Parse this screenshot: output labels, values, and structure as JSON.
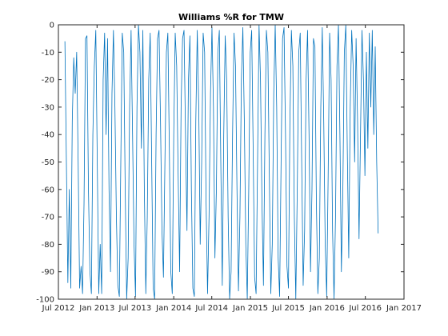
{
  "chart_data": {
    "type": "line",
    "title": "Williams %R for TMW",
    "xlabel": "",
    "ylabel": "",
    "xlim": [
      "2012-07-01",
      "2017-01-01"
    ],
    "ylim": [
      -100,
      0
    ],
    "x_ticks": [
      "2012-07-01",
      "2013-01-01",
      "2013-07-01",
      "2014-01-01",
      "2014-07-01",
      "2015-01-01",
      "2015-07-01",
      "2016-01-01",
      "2016-07-01",
      "2017-01-01"
    ],
    "x_tick_labels": [
      "Jul 2012",
      "Jan 2013",
      "Jul 2013",
      "Jan 2014",
      "Jul 2014",
      "Jan 2015",
      "Jul 2015",
      "Jan 2016",
      "Jul 2016",
      "Jan 2017"
    ],
    "y_ticks": [
      0,
      -10,
      -20,
      -30,
      -40,
      -50,
      -60,
      -70,
      -80,
      -90,
      -100
    ],
    "y_tick_labels": [
      "0",
      "-10",
      "-20",
      "-30",
      "-40",
      "-50",
      "-60",
      "-70",
      "-80",
      "-90",
      "-100"
    ],
    "grid": false,
    "series": [
      {
        "color": "#0072BD",
        "points": [
          [
            "2012-08-01",
            -6
          ],
          [
            "2012-08-08",
            -50
          ],
          [
            "2012-08-15",
            -94
          ],
          [
            "2012-08-22",
            -60
          ],
          [
            "2012-08-29",
            -96
          ],
          [
            "2012-09-05",
            -35
          ],
          [
            "2012-09-12",
            -12
          ],
          [
            "2012-09-19",
            -25
          ],
          [
            "2012-09-26",
            -10
          ],
          [
            "2012-10-03",
            -50
          ],
          [
            "2012-10-10",
            -96
          ],
          [
            "2012-10-17",
            -88
          ],
          [
            "2012-10-24",
            -98
          ],
          [
            "2012-10-31",
            -65
          ],
          [
            "2012-11-07",
            -5
          ],
          [
            "2012-11-14",
            -4
          ],
          [
            "2012-11-21",
            -60
          ],
          [
            "2012-11-28",
            -90
          ],
          [
            "2012-12-05",
            -98
          ],
          [
            "2012-12-12",
            -40
          ],
          [
            "2012-12-19",
            -15
          ],
          [
            "2012-12-26",
            -2
          ],
          [
            "2013-01-02",
            -50
          ],
          [
            "2013-01-09",
            -98
          ],
          [
            "2013-01-16",
            -80
          ],
          [
            "2013-01-23",
            -98
          ],
          [
            "2013-01-30",
            -20
          ],
          [
            "2013-02-06",
            -3
          ],
          [
            "2013-02-13",
            -40
          ],
          [
            "2013-02-20",
            -5
          ],
          [
            "2013-02-27",
            -60
          ],
          [
            "2013-03-06",
            -90
          ],
          [
            "2013-03-13",
            -25
          ],
          [
            "2013-03-20",
            -2
          ],
          [
            "2013-03-27",
            -30
          ],
          [
            "2013-04-03",
            -70
          ],
          [
            "2013-04-10",
            -95
          ],
          [
            "2013-04-17",
            -99
          ],
          [
            "2013-04-24",
            -50
          ],
          [
            "2013-05-01",
            -3
          ],
          [
            "2013-05-08",
            -10
          ],
          [
            "2013-05-15",
            -60
          ],
          [
            "2013-05-22",
            -100
          ],
          [
            "2013-05-29",
            -85
          ],
          [
            "2013-06-05",
            -30
          ],
          [
            "2013-06-12",
            -2
          ],
          [
            "2013-06-19",
            -40
          ],
          [
            "2013-06-26",
            -80
          ],
          [
            "2013-07-03",
            -99
          ],
          [
            "2013-07-10",
            -30
          ],
          [
            "2013-07-17",
            0
          ],
          [
            "2013-07-24",
            -10
          ],
          [
            "2013-07-31",
            -45
          ],
          [
            "2013-08-07",
            -2
          ],
          [
            "2013-08-14",
            -60
          ],
          [
            "2013-08-21",
            -98
          ],
          [
            "2013-08-28",
            -70
          ],
          [
            "2013-09-04",
            -20
          ],
          [
            "2013-09-11",
            -3
          ],
          [
            "2013-09-18",
            -50
          ],
          [
            "2013-09-25",
            -96
          ],
          [
            "2013-10-02",
            -100
          ],
          [
            "2013-10-09",
            -40
          ],
          [
            "2013-10-16",
            -5
          ],
          [
            "2013-10-23",
            -2
          ],
          [
            "2013-10-30",
            -35
          ],
          [
            "2013-11-06",
            -75
          ],
          [
            "2013-11-13",
            -92
          ],
          [
            "2013-11-20",
            -50
          ],
          [
            "2013-11-27",
            -10
          ],
          [
            "2013-12-04",
            -3
          ],
          [
            "2013-12-11",
            -45
          ],
          [
            "2013-12-18",
            -90
          ],
          [
            "2013-12-25",
            -98
          ],
          [
            "2014-01-01",
            -40
          ],
          [
            "2014-01-08",
            -3
          ],
          [
            "2014-01-15",
            -15
          ],
          [
            "2014-01-22",
            -55
          ],
          [
            "2014-01-29",
            -90
          ],
          [
            "2014-02-05",
            -30
          ],
          [
            "2014-02-12",
            -5
          ],
          [
            "2014-02-19",
            -2
          ],
          [
            "2014-02-26",
            -40
          ],
          [
            "2014-03-05",
            -75
          ],
          [
            "2014-03-12",
            -20
          ],
          [
            "2014-03-19",
            -4
          ],
          [
            "2014-03-26",
            -60
          ],
          [
            "2014-04-02",
            -96
          ],
          [
            "2014-04-09",
            -99
          ],
          [
            "2014-04-16",
            -35
          ],
          [
            "2014-04-23",
            -2
          ],
          [
            "2014-04-30",
            -30
          ],
          [
            "2014-05-07",
            -80
          ],
          [
            "2014-05-14",
            -50
          ],
          [
            "2014-05-21",
            -3
          ],
          [
            "2014-05-28",
            -10
          ],
          [
            "2014-06-04",
            -65
          ],
          [
            "2014-06-11",
            -98
          ],
          [
            "2014-06-18",
            -70
          ],
          [
            "2014-06-25",
            -25
          ],
          [
            "2014-07-02",
            -1
          ],
          [
            "2014-07-09",
            -30
          ],
          [
            "2014-07-16",
            -85
          ],
          [
            "2014-07-23",
            -60
          ],
          [
            "2014-07-30",
            -10
          ],
          [
            "2014-08-06",
            -2
          ],
          [
            "2014-08-13",
            -50
          ],
          [
            "2014-08-20",
            -95
          ],
          [
            "2014-08-27",
            -40
          ],
          [
            "2014-09-03",
            -4
          ],
          [
            "2014-09-10",
            -20
          ],
          [
            "2014-09-17",
            -70
          ],
          [
            "2014-09-24",
            -100
          ],
          [
            "2014-10-01",
            -90
          ],
          [
            "2014-10-08",
            -40
          ],
          [
            "2014-10-15",
            -3
          ],
          [
            "2014-10-22",
            -15
          ],
          [
            "2014-10-29",
            -60
          ],
          [
            "2014-11-05",
            -97
          ],
          [
            "2014-11-12",
            -70
          ],
          [
            "2014-11-19",
            -20
          ],
          [
            "2014-11-26",
            -1
          ],
          [
            "2014-12-03",
            -35
          ],
          [
            "2014-12-10",
            -80
          ],
          [
            "2014-12-17",
            -100
          ],
          [
            "2014-12-24",
            -60
          ],
          [
            "2014-12-31",
            -10
          ],
          [
            "2015-01-07",
            -2
          ],
          [
            "2015-01-14",
            -45
          ],
          [
            "2015-01-21",
            -92
          ],
          [
            "2015-01-28",
            -98
          ],
          [
            "2015-02-04",
            -50
          ],
          [
            "2015-02-11",
            0
          ],
          [
            "2015-02-18",
            -20
          ],
          [
            "2015-02-25",
            -65
          ],
          [
            "2015-03-04",
            -95
          ],
          [
            "2015-03-11",
            -40
          ],
          [
            "2015-03-18",
            -2
          ],
          [
            "2015-03-25",
            -10
          ],
          [
            "2015-04-01",
            -55
          ],
          [
            "2015-04-08",
            -98
          ],
          [
            "2015-04-15",
            -80
          ],
          [
            "2015-04-22",
            -25
          ],
          [
            "2015-04-29",
            0
          ],
          [
            "2015-05-06",
            -30
          ],
          [
            "2015-05-13",
            -85
          ],
          [
            "2015-05-20",
            -99
          ],
          [
            "2015-05-27",
            -50
          ],
          [
            "2015-06-03",
            -5
          ],
          [
            "2015-06-10",
            -1
          ],
          [
            "2015-06-17",
            -40
          ],
          [
            "2015-06-24",
            -88
          ],
          [
            "2015-07-01",
            -96
          ],
          [
            "2015-07-08",
            -35
          ],
          [
            "2015-07-15",
            -2
          ],
          [
            "2015-07-22",
            -15
          ],
          [
            "2015-07-29",
            -70
          ],
          [
            "2015-08-05",
            -100
          ],
          [
            "2015-08-12",
            -60
          ],
          [
            "2015-08-19",
            -10
          ],
          [
            "2015-08-26",
            -3
          ],
          [
            "2015-09-02",
            -50
          ],
          [
            "2015-09-09",
            -95
          ],
          [
            "2015-09-16",
            -75
          ],
          [
            "2015-09-23",
            -20
          ],
          [
            "2015-09-30",
            -2
          ],
          [
            "2015-10-07",
            -40
          ],
          [
            "2015-10-14",
            -90
          ],
          [
            "2015-10-21",
            -60
          ],
          [
            "2015-10-28",
            -5
          ],
          [
            "2015-11-04",
            -8
          ],
          [
            "2015-11-11",
            -65
          ],
          [
            "2015-11-18",
            -98
          ],
          [
            "2015-11-25",
            -85
          ],
          [
            "2015-12-02",
            -30
          ],
          [
            "2015-12-09",
            -1
          ],
          [
            "2015-12-16",
            -35
          ],
          [
            "2015-12-23",
            -80
          ],
          [
            "2015-12-30",
            -99
          ],
          [
            "2016-01-06",
            -55
          ],
          [
            "2016-01-13",
            -3
          ],
          [
            "2016-01-20",
            -20
          ],
          [
            "2016-01-27",
            -75
          ],
          [
            "2016-02-03",
            -100
          ],
          [
            "2016-02-10",
            -70
          ],
          [
            "2016-02-17",
            -15
          ],
          [
            "2016-02-24",
            0
          ],
          [
            "2016-03-02",
            -40
          ],
          [
            "2016-03-09",
            -90
          ],
          [
            "2016-03-16",
            -60
          ],
          [
            "2016-03-23",
            -10
          ],
          [
            "2016-03-30",
            0
          ],
          [
            "2016-04-06",
            -45
          ],
          [
            "2016-04-13",
            -85
          ],
          [
            "2016-04-20",
            -30
          ],
          [
            "2016-04-27",
            -2
          ],
          [
            "2016-05-04",
            -15
          ],
          [
            "2016-05-11",
            -50
          ],
          [
            "2016-05-18",
            -5
          ],
          [
            "2016-05-25",
            -35
          ],
          [
            "2016-06-01",
            -78
          ],
          [
            "2016-06-08",
            -40
          ],
          [
            "2016-06-15",
            -2
          ],
          [
            "2016-06-22",
            -20
          ],
          [
            "2016-06-29",
            -55
          ],
          [
            "2016-07-06",
            -10
          ],
          [
            "2016-07-13",
            -45
          ],
          [
            "2016-07-20",
            -3
          ],
          [
            "2016-07-27",
            -30
          ],
          [
            "2016-08-03",
            -2
          ],
          [
            "2016-08-10",
            -40
          ],
          [
            "2016-08-17",
            -8
          ],
          [
            "2016-08-24",
            -50
          ],
          [
            "2016-08-31",
            -76
          ]
        ]
      }
    ]
  }
}
